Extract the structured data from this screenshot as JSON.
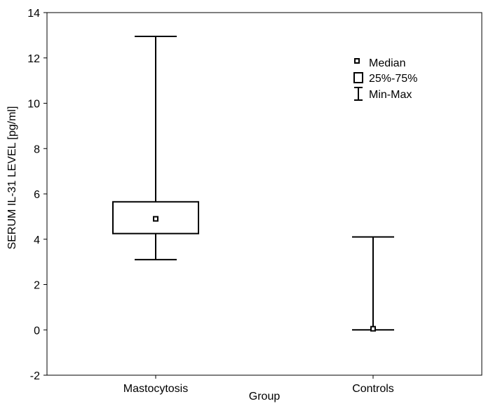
{
  "chart_data": {
    "type": "box",
    "xlabel": "Group",
    "ylabel": "SERUM IL-31 LEVEL [pg/ml]",
    "ylim": [
      -2,
      14
    ],
    "yticks": [
      -2,
      0,
      2,
      4,
      6,
      8,
      10,
      12,
      14
    ],
    "ytick_labels": [
      "-2",
      "0",
      "2",
      "4",
      "6",
      "8",
      "10",
      "12",
      "14"
    ],
    "grid": false,
    "legend_position": "top-right",
    "legend": {
      "median": "Median",
      "box": "25%-75%",
      "range": "Min-Max"
    },
    "categories": [
      "Mastocytosis",
      "Controls"
    ],
    "boxes": [
      {
        "group": "Mastocytosis",
        "min": 3.1,
        "q1": 4.25,
        "median": 4.9,
        "q3": 5.65,
        "max": 12.95
      },
      {
        "group": "Controls",
        "min": 0.0,
        "q1": 0.0,
        "median": 0.05,
        "q3": 0.05,
        "max": 4.1
      }
    ]
  }
}
